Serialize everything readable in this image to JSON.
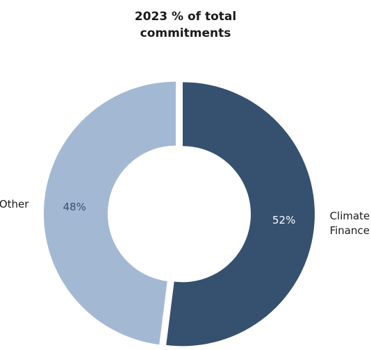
{
  "chart_data": {
    "type": "donut",
    "title": "2023 % of total commitments",
    "categories": [
      "Climate Finance",
      "Other"
    ],
    "values": [
      52,
      48
    ],
    "value_labels": [
      "52%",
      "48%"
    ],
    "colors": [
      "#36506f",
      "#a3b8d3"
    ],
    "value_label_colors": [
      "#ffffff",
      "#36506f"
    ]
  }
}
